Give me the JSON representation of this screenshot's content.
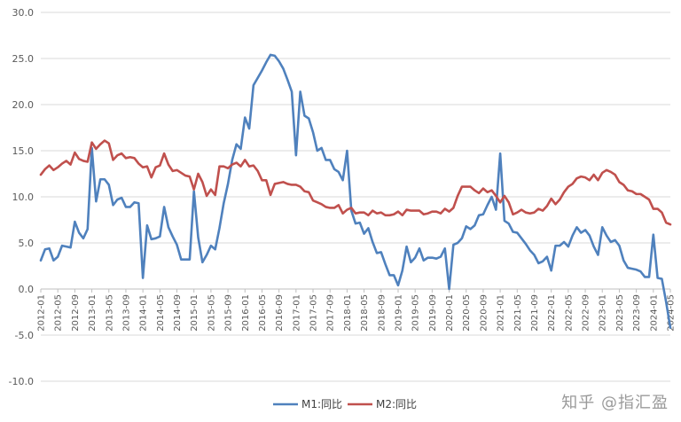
{
  "chart_data": {
    "type": "line",
    "x": [
      "2012-01",
      "2012-02",
      "2012-03",
      "2012-04",
      "2012-05",
      "2012-06",
      "2012-07",
      "2012-08",
      "2012-09",
      "2012-10",
      "2012-11",
      "2012-12",
      "2013-01",
      "2013-02",
      "2013-03",
      "2013-04",
      "2013-05",
      "2013-06",
      "2013-07",
      "2013-08",
      "2013-09",
      "2013-10",
      "2013-11",
      "2013-12",
      "2014-01",
      "2014-02",
      "2014-03",
      "2014-04",
      "2014-05",
      "2014-06",
      "2014-07",
      "2014-08",
      "2014-09",
      "2014-10",
      "2014-11",
      "2014-12",
      "2015-01",
      "2015-02",
      "2015-03",
      "2015-04",
      "2015-05",
      "2015-06",
      "2015-07",
      "2015-08",
      "2015-09",
      "2015-10",
      "2015-11",
      "2015-12",
      "2016-01",
      "2016-02",
      "2016-03",
      "2016-04",
      "2016-05",
      "2016-06",
      "2016-07",
      "2016-08",
      "2016-09",
      "2016-10",
      "2016-11",
      "2016-12",
      "2017-01",
      "2017-02",
      "2017-03",
      "2017-04",
      "2017-05",
      "2017-06",
      "2017-07",
      "2017-08",
      "2017-09",
      "2017-10",
      "2017-11",
      "2017-12",
      "2018-01",
      "2018-02",
      "2018-03",
      "2018-04",
      "2018-05",
      "2018-06",
      "2018-07",
      "2018-08",
      "2018-09",
      "2018-10",
      "2018-11",
      "2018-12",
      "2019-01",
      "2019-02",
      "2019-03",
      "2019-04",
      "2019-05",
      "2019-06",
      "2019-07",
      "2019-08",
      "2019-09",
      "2019-10",
      "2019-11",
      "2019-12",
      "2020-01",
      "2020-02",
      "2020-03",
      "2020-04",
      "2020-05",
      "2020-06",
      "2020-07",
      "2020-08",
      "2020-09",
      "2020-10",
      "2020-11",
      "2020-12",
      "2021-01",
      "2021-02",
      "2021-03",
      "2021-04",
      "2021-05",
      "2021-06",
      "2021-07",
      "2021-08",
      "2021-09",
      "2021-10",
      "2021-11",
      "2021-12",
      "2022-01",
      "2022-02",
      "2022-03",
      "2022-04",
      "2022-05",
      "2022-06",
      "2022-07",
      "2022-08",
      "2022-09",
      "2022-10",
      "2022-11",
      "2022-12",
      "2023-01",
      "2023-02",
      "2023-03",
      "2023-04",
      "2023-05",
      "2023-06",
      "2023-07",
      "2023-08",
      "2023-09",
      "2023-10",
      "2023-11",
      "2023-12",
      "2024-01",
      "2024-02",
      "2024-03",
      "2024-04",
      "2024-05"
    ],
    "tick_labels": [
      "2012-01",
      "2012-05",
      "2012-09",
      "2013-01",
      "2013-05",
      "2013-09",
      "2014-01",
      "2014-05",
      "2014-09",
      "2015-01",
      "2015-05",
      "2015-09",
      "2016-01",
      "2016-05",
      "2016-09",
      "2017-01",
      "2017-05",
      "2017-09",
      "2018-01",
      "2018-05",
      "2018-09",
      "2019-01",
      "2019-05",
      "2019-09",
      "2020-01",
      "2020-05",
      "2020-09",
      "2021-01",
      "2021-05",
      "2021-09",
      "2022-01",
      "2022-05",
      "2022-09",
      "2023-01",
      "2023-05",
      "2023-09",
      "2024-01",
      "2024-05"
    ],
    "series": [
      {
        "name": "M1:同比",
        "color": "#4f81bd",
        "values": [
          3.1,
          4.3,
          4.4,
          3.1,
          3.5,
          4.7,
          4.6,
          4.5,
          7.3,
          6.1,
          5.5,
          6.5,
          15.3,
          9.5,
          11.9,
          11.9,
          11.3,
          9.1,
          9.7,
          9.9,
          8.9,
          8.9,
          9.4,
          9.3,
          1.2,
          6.9,
          5.4,
          5.5,
          5.7,
          8.9,
          6.7,
          5.7,
          4.8,
          3.2,
          3.2,
          3.2,
          10.6,
          5.6,
          2.9,
          3.7,
          4.7,
          4.3,
          6.6,
          9.3,
          11.4,
          14.0,
          15.7,
          15.2,
          18.6,
          17.4,
          22.1,
          22.9,
          23.7,
          24.6,
          25.4,
          25.3,
          24.7,
          23.9,
          22.7,
          21.4,
          14.5,
          21.4,
          18.8,
          18.5,
          17.0,
          15.0,
          15.3,
          14.0,
          14.0,
          13.0,
          12.7,
          11.8,
          15.0,
          8.5,
          7.1,
          7.2,
          6.0,
          6.6,
          5.1,
          3.9,
          4.0,
          2.7,
          1.5,
          1.5,
          0.4,
          2.0,
          4.6,
          2.9,
          3.4,
          4.4,
          3.1,
          3.4,
          3.4,
          3.3,
          3.5,
          4.4,
          0.0,
          4.8,
          5.0,
          5.5,
          6.8,
          6.5,
          6.9,
          8.0,
          8.1,
          9.1,
          10.0,
          8.6,
          14.7,
          7.4,
          7.1,
          6.2,
          6.1,
          5.5,
          4.9,
          4.2,
          3.7,
          2.8,
          3.0,
          3.5,
          2.0,
          4.7,
          4.7,
          5.1,
          4.6,
          5.8,
          6.7,
          6.1,
          6.4,
          5.8,
          4.6,
          3.7,
          6.7,
          5.8,
          5.1,
          5.3,
          4.7,
          3.1,
          2.3,
          2.2,
          2.1,
          1.9,
          1.3,
          1.3,
          5.9,
          1.2,
          1.1,
          -1.4,
          -4.2
        ]
      },
      {
        "name": "M2:同比",
        "color": "#c0504d",
        "values": [
          12.4,
          13.0,
          13.4,
          12.9,
          13.2,
          13.6,
          13.9,
          13.5,
          14.8,
          14.1,
          13.9,
          13.8,
          15.9,
          15.2,
          15.7,
          16.1,
          15.8,
          14.0,
          14.5,
          14.7,
          14.2,
          14.3,
          14.2,
          13.6,
          13.2,
          13.3,
          12.1,
          13.2,
          13.4,
          14.7,
          13.5,
          12.8,
          12.9,
          12.6,
          12.3,
          12.2,
          10.8,
          12.5,
          11.6,
          10.1,
          10.8,
          10.2,
          13.3,
          13.3,
          13.1,
          13.5,
          13.7,
          13.3,
          14.0,
          13.3,
          13.4,
          12.8,
          11.8,
          11.8,
          10.2,
          11.4,
          11.5,
          11.6,
          11.4,
          11.3,
          11.3,
          11.1,
          10.6,
          10.5,
          9.6,
          9.4,
          9.2,
          8.9,
          8.8,
          8.8,
          9.1,
          8.2,
          8.6,
          8.8,
          8.2,
          8.3,
          8.3,
          8.0,
          8.5,
          8.2,
          8.3,
          8.0,
          8.0,
          8.1,
          8.4,
          8.0,
          8.6,
          8.5,
          8.5,
          8.5,
          8.1,
          8.2,
          8.4,
          8.4,
          8.2,
          8.7,
          8.4,
          8.8,
          10.1,
          11.1,
          11.1,
          11.1,
          10.7,
          10.4,
          10.9,
          10.5,
          10.7,
          10.1,
          9.4,
          10.1,
          9.4,
          8.1,
          8.3,
          8.6,
          8.3,
          8.2,
          8.3,
          8.7,
          8.5,
          9.0,
          9.8,
          9.2,
          9.7,
          10.5,
          11.1,
          11.4,
          12.0,
          12.2,
          12.1,
          11.8,
          12.4,
          11.8,
          12.6,
          12.9,
          12.7,
          12.4,
          11.6,
          11.3,
          10.7,
          10.6,
          10.3,
          10.3,
          10.0,
          9.7,
          8.7,
          8.7,
          8.3,
          7.2,
          7.0
        ]
      }
    ],
    "ylim": [
      -10.0,
      30.0
    ],
    "yticks": [
      "30.0",
      "25.0",
      "20.0",
      "15.0",
      "10.0",
      "5.0",
      "0.0",
      "-5.0",
      "-10.0"
    ],
    "grid": true,
    "legend": "bottom-center"
  },
  "watermark": "知乎 @指汇盈"
}
